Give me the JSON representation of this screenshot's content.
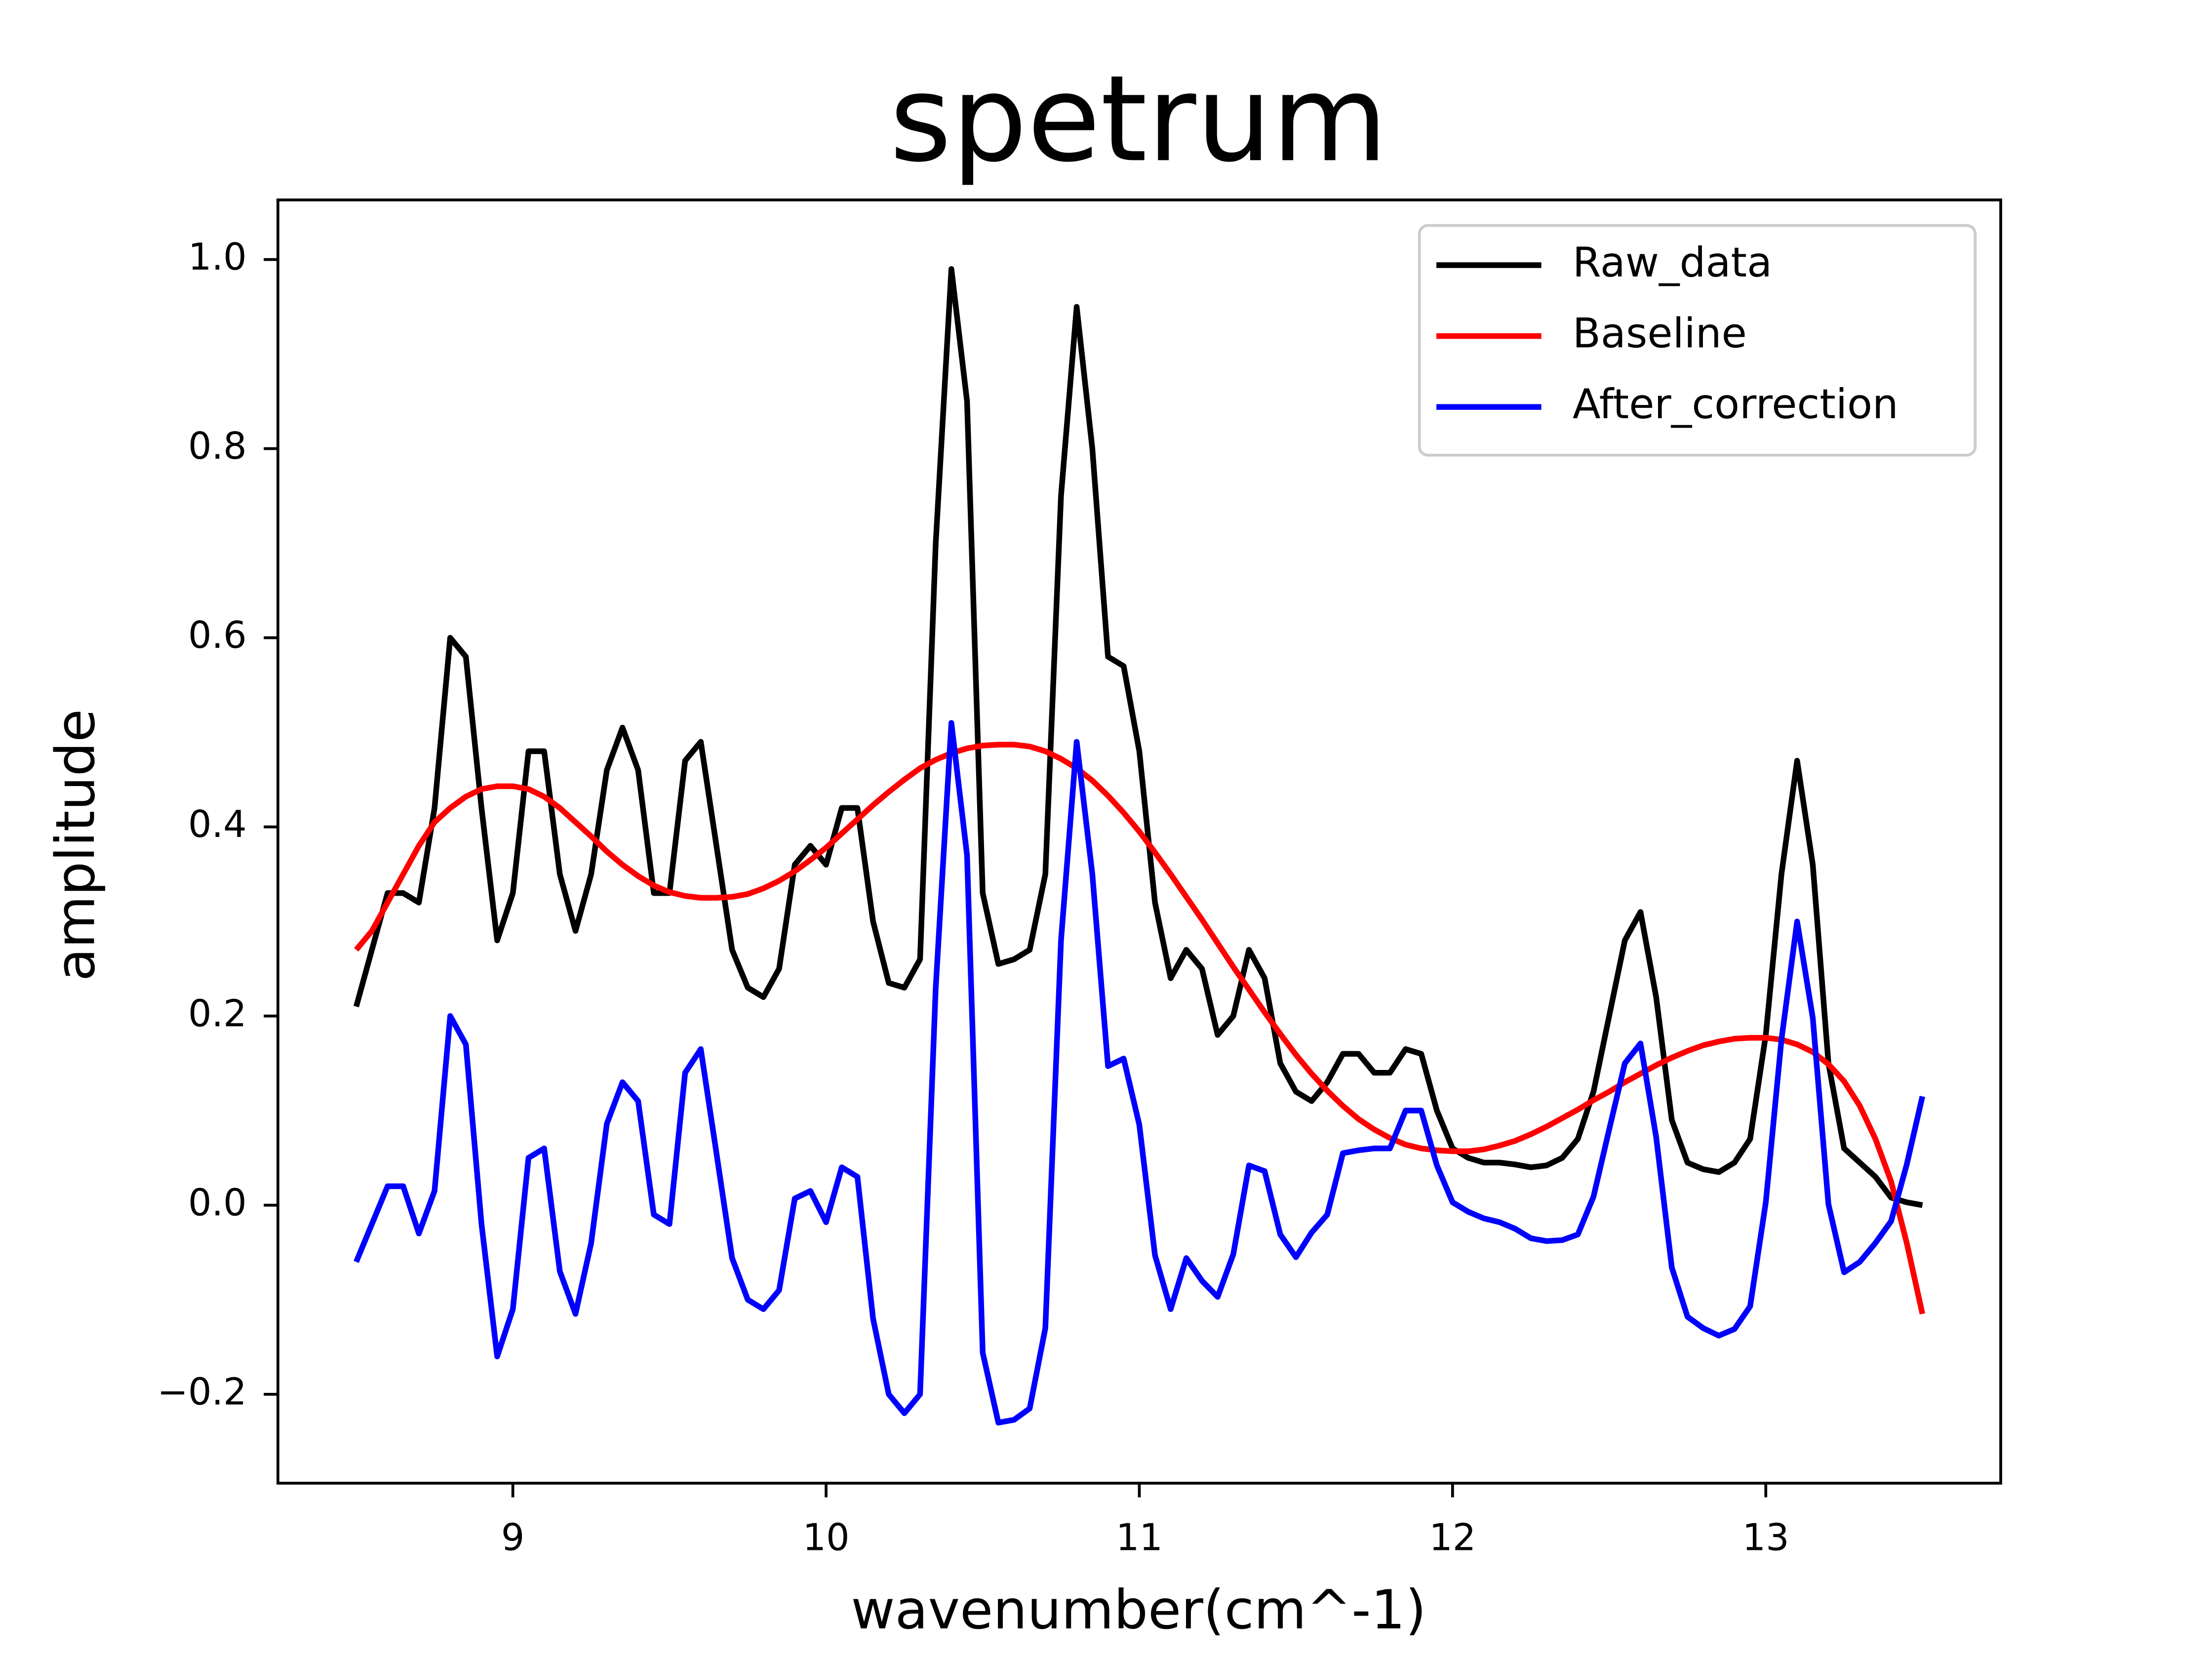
{
  "chart_data": {
    "type": "line",
    "title": "spetrum",
    "x_label": "wavenumber(cm^-1)",
    "y_label": "amplitude",
    "xlim": [
      8.25,
      13.75
    ],
    "ylim": [
      -0.294,
      1.063
    ],
    "xticks": [
      9,
      10,
      11,
      12,
      13
    ],
    "yticks": [
      {
        "value": -0.2,
        "label": "−0.2"
      },
      {
        "value": 0,
        "label": "0.0"
      },
      0.2,
      0.4,
      0.6,
      0.8,
      {
        "value": 1,
        "label": "1.0"
      }
    ],
    "grid": false,
    "legend": "upper right",
    "x": [
      8.5,
      8.55,
      8.6,
      8.65,
      8.7,
      8.75,
      8.8,
      8.85,
      8.9,
      8.95,
      9.0,
      9.05,
      9.1,
      9.15,
      9.2,
      9.25,
      9.3,
      9.35,
      9.4,
      9.45,
      9.5,
      9.55,
      9.6,
      9.65,
      9.7,
      9.75,
      9.8,
      9.85,
      9.9,
      9.95,
      10.0,
      10.05,
      10.1,
      10.15,
      10.2,
      10.25,
      10.3,
      10.35,
      10.4,
      10.45,
      10.5,
      10.55,
      10.6,
      10.65,
      10.7,
      10.75,
      10.8,
      10.85,
      10.9,
      10.95,
      11.0,
      11.05,
      11.1,
      11.15,
      11.2,
      11.25,
      11.3,
      11.35,
      11.4,
      11.45,
      11.5,
      11.55,
      11.6,
      11.65,
      11.7,
      11.75,
      11.8,
      11.85,
      11.9,
      11.95,
      12.0,
      12.05,
      12.1,
      12.15,
      12.2,
      12.25,
      12.3,
      12.35,
      12.4,
      12.45,
      12.5,
      12.55,
      12.6,
      12.65,
      12.7,
      12.75,
      12.8,
      12.85,
      12.9,
      12.95,
      13.0,
      13.05,
      13.1,
      13.15,
      13.2,
      13.25,
      13.3,
      13.35,
      13.4,
      13.45,
      13.5
    ],
    "series": [
      {
        "name": "Raw_data",
        "color": "#000000",
        "values": [
          0.21,
          0.27,
          0.33,
          0.33,
          0.32,
          0.42,
          0.6,
          0.58,
          0.42,
          0.28,
          0.33,
          0.48,
          0.48,
          0.35,
          0.29,
          0.35,
          0.46,
          0.505,
          0.46,
          0.33,
          0.33,
          0.47,
          0.49,
          0.38,
          0.27,
          0.23,
          0.22,
          0.25,
          0.36,
          0.38,
          0.36,
          0.42,
          0.42,
          0.3,
          0.235,
          0.23,
          0.26,
          0.7,
          0.99,
          0.85,
          0.33,
          0.255,
          0.26,
          0.27,
          0.35,
          0.75,
          0.95,
          0.8,
          0.58,
          0.57,
          0.48,
          0.32,
          0.24,
          0.27,
          0.25,
          0.18,
          0.2,
          0.27,
          0.24,
          0.15,
          0.12,
          0.11,
          0.13,
          0.16,
          0.16,
          0.14,
          0.14,
          0.165,
          0.16,
          0.1,
          0.06,
          0.05,
          0.045,
          0.045,
          0.043,
          0.04,
          0.042,
          0.05,
          0.07,
          0.12,
          0.2,
          0.28,
          0.31,
          0.22,
          0.09,
          0.045,
          0.038,
          0.035,
          0.045,
          0.07,
          0.18,
          0.35,
          0.47,
          0.36,
          0.15,
          0.06,
          0.045,
          0.03,
          0.008,
          0.003,
          0.0
        ]
      },
      {
        "name": "Baseline",
        "color": "#ff0000",
        "values": [
          0.27,
          0.29,
          0.32,
          0.35,
          0.38,
          0.405,
          0.42,
          0.432,
          0.44,
          0.443,
          0.443,
          0.44,
          0.432,
          0.42,
          0.405,
          0.39,
          0.374,
          0.36,
          0.348,
          0.338,
          0.331,
          0.327,
          0.325,
          0.325,
          0.326,
          0.329,
          0.335,
          0.343,
          0.353,
          0.365,
          0.378,
          0.393,
          0.408,
          0.423,
          0.437,
          0.45,
          0.462,
          0.471,
          0.478,
          0.483,
          0.486,
          0.487,
          0.487,
          0.485,
          0.48,
          0.472,
          0.462,
          0.449,
          0.433,
          0.415,
          0.395,
          0.373,
          0.35,
          0.326,
          0.302,
          0.277,
          0.252,
          0.228,
          0.204,
          0.181,
          0.159,
          0.139,
          0.121,
          0.105,
          0.091,
          0.08,
          0.071,
          0.064,
          0.06,
          0.058,
          0.057,
          0.057,
          0.059,
          0.063,
          0.068,
          0.075,
          0.083,
          0.092,
          0.101,
          0.111,
          0.12,
          0.13,
          0.139,
          0.148,
          0.156,
          0.163,
          0.169,
          0.173,
          0.176,
          0.177,
          0.177,
          0.175,
          0.17,
          0.162,
          0.149,
          0.131,
          0.105,
          0.07,
          0.025,
          -0.04,
          -0.115
        ]
      },
      {
        "name": "After_correction",
        "color": "#0000ff",
        "values": [
          -0.06,
          -0.02,
          0.02,
          0.02,
          -0.03,
          0.015,
          0.2,
          0.17,
          -0.02,
          -0.16,
          -0.11,
          0.05,
          0.06,
          -0.07,
          -0.115,
          -0.04,
          0.086,
          0.13,
          0.11,
          -0.01,
          -0.02,
          0.14,
          0.165,
          0.055,
          -0.056,
          -0.1,
          -0.11,
          -0.09,
          0.007,
          0.015,
          -0.018,
          0.04,
          0.03,
          -0.12,
          -0.2,
          -0.22,
          -0.2,
          0.23,
          0.51,
          0.37,
          -0.156,
          -0.23,
          -0.227,
          -0.215,
          -0.13,
          0.28,
          0.49,
          0.35,
          0.147,
          0.155,
          0.085,
          -0.053,
          -0.11,
          -0.056,
          -0.08,
          -0.097,
          -0.052,
          0.042,
          0.036,
          -0.031,
          -0.055,
          -0.029,
          -0.01,
          0.055,
          0.058,
          0.06,
          0.06,
          0.1,
          0.1,
          0.042,
          0.003,
          -0.007,
          -0.014,
          -0.018,
          -0.025,
          -0.035,
          -0.038,
          -0.037,
          -0.031,
          0.009,
          0.08,
          0.15,
          0.171,
          0.072,
          -0.066,
          -0.118,
          -0.13,
          -0.138,
          -0.131,
          -0.107,
          0.003,
          0.175,
          0.3,
          0.198,
          0.001,
          -0.071,
          -0.06,
          -0.04,
          -0.017,
          0.043,
          0.115
        ]
      }
    ]
  }
}
